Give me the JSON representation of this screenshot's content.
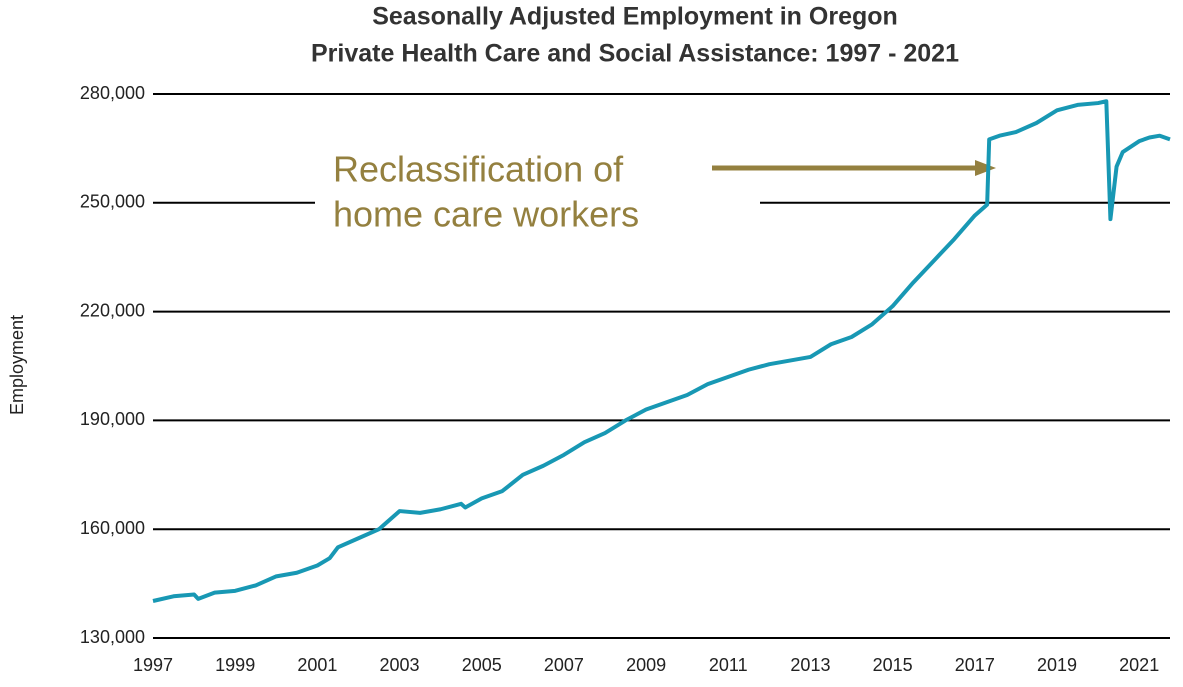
{
  "chart_data": {
    "type": "line",
    "title": "Seasonally Adjusted Employment in Oregon",
    "subtitle": "Private Health Care and Social Assistance:  1997 - 2021",
    "y_label": "Employment",
    "annotation": [
      "Reclassification of",
      "home care workers"
    ],
    "annotation_color": "#94803f",
    "grid": true,
    "xlim": [
      1997,
      2021.75
    ],
    "xticks": [
      1997,
      1999,
      2001,
      2003,
      2005,
      2007,
      2009,
      2011,
      2013,
      2015,
      2017,
      2019,
      2021
    ],
    "ylim": [
      130000,
      280000
    ],
    "yticks": [
      {
        "value": 130000,
        "label": "130,000"
      },
      {
        "value": 160000,
        "label": "160,000"
      },
      {
        "value": 190000,
        "label": "190,000"
      },
      {
        "value": 220000,
        "label": "220,000"
      },
      {
        "value": 250000,
        "label": "250,000"
      },
      {
        "value": 280000,
        "label": "280,000"
      }
    ],
    "x": [
      1997,
      1997.5,
      1998,
      1998.1,
      1998.5,
      1999,
      1999.5,
      2000,
      2000.5,
      2001,
      2001.3,
      2001.5,
      2002,
      2002.5,
      2003,
      2003.5,
      2004,
      2004.5,
      2004.6,
      2005,
      2005.5,
      2006,
      2006.5,
      2007,
      2007.5,
      2008,
      2008.5,
      2009,
      2009.5,
      2010,
      2010.5,
      2011,
      2011.5,
      2012,
      2012.5,
      2013,
      2013.5,
      2014,
      2014.5,
      2015,
      2015.5,
      2016,
      2016.5,
      2017,
      2017.2,
      2017.3,
      2017.35,
      2017.6,
      2018,
      2018.5,
      2019,
      2019.5,
      2020.0,
      2020.2,
      2020.3,
      2020.45,
      2020.6,
      2021,
      2021.25,
      2021.5,
      2021.75
    ],
    "series": [
      {
        "name": "Employment",
        "color": "#1898b4",
        "values": [
          140200,
          141500,
          142000,
          140800,
          142500,
          143000,
          144500,
          147000,
          148000,
          150000,
          152000,
          155000,
          157500,
          160000,
          165000,
          164500,
          165500,
          167000,
          166000,
          168500,
          170500,
          175000,
          177500,
          180500,
          184000,
          186500,
          190000,
          193000,
          195000,
          197000,
          200000,
          202000,
          204000,
          205500,
          206500,
          207500,
          211000,
          213000,
          216500,
          221500,
          228000,
          234000,
          240000,
          246500,
          248500,
          249500,
          267500,
          268500,
          269500,
          272000,
          275500,
          277000,
          277500,
          278000,
          245500,
          260000,
          264000,
          267000,
          268000,
          268500,
          267500
        ]
      }
    ]
  }
}
